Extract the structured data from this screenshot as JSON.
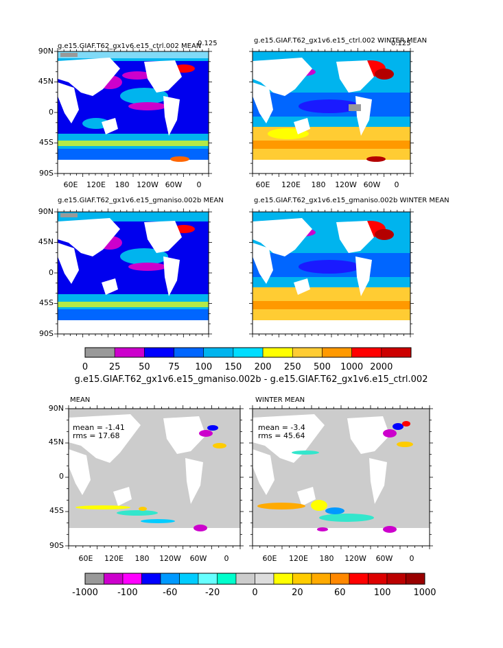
{
  "chart_data": [
    {
      "type": "heatmap",
      "title": "g.e15.GIAF.T62_gx1v6.e15_ctrl.002 MEAN",
      "units": "0.125",
      "xticks": [
        "60E",
        "120E",
        "180",
        "120W",
        "60W",
        "0"
      ],
      "yticks": [
        "90N",
        "45N",
        "0",
        "45S",
        "90S"
      ],
      "palette": "levels"
    },
    {
      "type": "heatmap",
      "title": "g.e15.GIAF.T62_gx1v6.e15_ctrl.002 WINTER MEAN",
      "units": "0.125",
      "xticks": [
        "60E",
        "120E",
        "180",
        "120W",
        "60W",
        "0"
      ],
      "yticks": [
        "90N",
        "45N",
        "0",
        "45S",
        "90S"
      ],
      "palette": "levels"
    },
    {
      "type": "heatmap",
      "title": "g.e15.GIAF.T62_gx1v6.e15_gmaniso.002b MEAN",
      "xticks": [
        "60E",
        "120E",
        "180",
        "120W",
        "60W",
        "0"
      ],
      "yticks": [
        "90N",
        "45N",
        "0",
        "45S",
        "90S"
      ],
      "palette": "levels"
    },
    {
      "type": "heatmap",
      "title": "g.e15.GIAF.T62_gx1v6.e15_gmaniso.002b WINTER MEAN",
      "xticks": [
        "60E",
        "120E",
        "180",
        "120W",
        "60W",
        "0"
      ],
      "yticks": [
        "90N",
        "45N",
        "0",
        "45S",
        "90S"
      ],
      "palette": "levels"
    },
    {
      "type": "heatmap",
      "title": "MEAN",
      "stats": [
        "mean = -1.41",
        "rms = 17.68"
      ],
      "xticks": [
        "60E",
        "120E",
        "180",
        "120W",
        "60W",
        "0"
      ],
      "yticks": [
        "90N",
        "45N",
        "0",
        "45S",
        "90S"
      ],
      "palette": "diff"
    },
    {
      "type": "heatmap",
      "title": "WINTER MEAN",
      "stats": [
        "mean = -3.4",
        "rms = 45.64"
      ],
      "xticks": [
        "60E",
        "120E",
        "180",
        "120W",
        "60W",
        "0"
      ],
      "yticks": [
        "90N",
        "45N",
        "0",
        "45S",
        "90S"
      ],
      "palette": "diff"
    }
  ],
  "colorbar_top": {
    "labels": [
      "0",
      "25",
      "50",
      "75",
      "100",
      "150",
      "200",
      "250",
      "500",
      "1000",
      "2000"
    ],
    "colors": [
      "#999999",
      "#cc00cc",
      "#0000ff",
      "#0066ff",
      "#00b4ee",
      "#00ddff",
      "#ffff00",
      "#ffcc33",
      "#ff9900",
      "#ff0000",
      "#cc0000"
    ]
  },
  "diff_title": "g.e15.GIAF.T62_gx1v6.e15_gmaniso.002b - g.e15.GIAF.T62_gx1v6.e15_ctrl.002",
  "colorbar_bottom": {
    "labels": [
      "-1000",
      "-100",
      "-60",
      "-20",
      "0",
      "20",
      "60",
      "100",
      "1000"
    ],
    "colors": [
      "#999999",
      "#cc00cc",
      "#ff00ff",
      "#0000ff",
      "#0099ff",
      "#00ccff",
      "#66ffff",
      "#00ffcc",
      "#cccccc",
      "#dddddd",
      "#ffff00",
      "#ffcc00",
      "#ffaa00",
      "#ff8800",
      "#ff0000",
      "#dd0000",
      "#bb0000",
      "#990000"
    ]
  },
  "palette_colors": {
    "land": "#ffffff",
    "gray": "#999999",
    "magenta": "#cc00cc",
    "deepblue": "#1a1aff",
    "blue": "#0066ff",
    "lightblue": "#00b4ee",
    "cyan": "#00ddff",
    "yellow": "#ffff00",
    "gold": "#ffcc33",
    "orange": "#ff9900",
    "red": "#ff0000",
    "darkred": "#b40000",
    "diffgray": "#cccccc",
    "teal": "#33e6cc"
  }
}
